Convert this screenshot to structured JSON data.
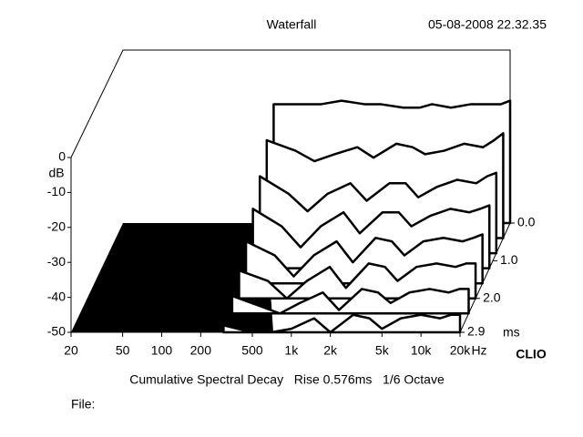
{
  "chart_data": {
    "type": "waterfall",
    "title": "Waterfall",
    "date": "05-08-2008 22.32.35",
    "subtitle": "Cumulative Spectral Decay   Rise 0.576ms   1/6 Octave",
    "file_label": "File:",
    "brand": "CLIO",
    "ylabel": "dB",
    "xunit": "Hz",
    "tunit": "ms",
    "x": [
      300,
      500,
      700,
      1000,
      1500,
      2000,
      3000,
      4000,
      5000,
      7000,
      10000,
      14000,
      17000,
      20000
    ],
    "times": [
      0,
      0.4,
      0.8,
      1.2,
      1.6,
      2.0,
      2.4,
      2.9
    ],
    "values": [
      [
        -16,
        -16,
        -16,
        -15,
        -16,
        -16,
        -17,
        -17,
        -16,
        -17,
        -16,
        -16,
        -16,
        -15
      ],
      [
        -22,
        -25,
        -28,
        -26,
        -24,
        -27,
        -23,
        -24,
        -26,
        -25,
        -23,
        -24,
        -22,
        -20
      ],
      [
        -28,
        -33,
        -38,
        -33,
        -30,
        -35,
        -30,
        -30,
        -34,
        -31,
        -29,
        -30,
        -28,
        -27
      ],
      [
        -33,
        -38,
        -44,
        -38,
        -34,
        -40,
        -34,
        -34,
        -38,
        -35,
        -33,
        -34,
        -33,
        -32
      ],
      [
        -38,
        -42,
        -48,
        -42,
        -38,
        -44,
        -37,
        -38,
        -42,
        -38,
        -37,
        -38,
        -37,
        -36
      ],
      [
        -42,
        -45,
        -50,
        -45,
        -41,
        -47,
        -40,
        -41,
        -45,
        -41,
        -40,
        -41,
        -40,
        -40
      ],
      [
        -45,
        -48,
        -50,
        -47,
        -44,
        -49,
        -43,
        -44,
        -47,
        -44,
        -43,
        -44,
        -43,
        -43
      ],
      [
        -48,
        -50,
        -50,
        -49,
        -46,
        -50,
        -45,
        -46,
        -49,
        -46,
        -45,
        -46,
        -45,
        -45
      ]
    ],
    "color": "#000000",
    "xscale": "log",
    "xlim": [
      20,
      20000
    ],
    "xticks": [
      20,
      50,
      100,
      200,
      500,
      {
        "value": 1000,
        "label": "1k"
      },
      {
        "value": 2000,
        "label": "2k"
      },
      {
        "value": 5000,
        "label": "5k"
      },
      {
        "value": 10000,
        "label": "10k"
      },
      {
        "value": 20000,
        "label": "20k"
      }
    ],
    "ylim": [
      -50,
      0
    ],
    "yticks": [
      0,
      -10,
      -20,
      -30,
      -40,
      -50
    ],
    "tlim": [
      0,
      2.9
    ],
    "tticks": [
      {
        "value": 0,
        "label": "0.0"
      },
      {
        "value": 1,
        "label": "1.0"
      },
      {
        "value": 2,
        "label": "2.0"
      },
      2.9
    ]
  }
}
